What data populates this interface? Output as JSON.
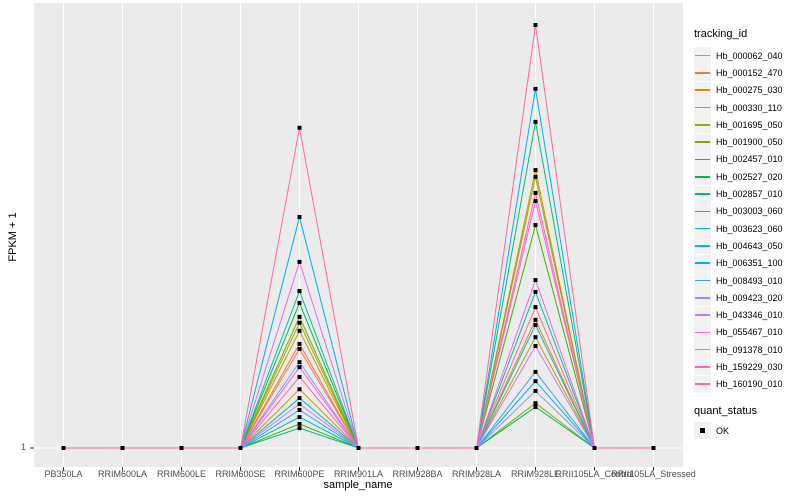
{
  "chart": {
    "y_axis_title": "FPKM + 1",
    "x_axis_title": "sample_name",
    "y_tick_label": "1"
  },
  "legend": {
    "tracking_title": "tracking_id",
    "quant_title": "quant_status",
    "quant_items": [
      {
        "label": "OK",
        "marker": "black-square"
      }
    ]
  },
  "colors": {
    "panel_background": "#EBEBEB",
    "gridline": "#FFFFFF",
    "tick_text": "#4D4D4D",
    "axis_text": "#000000",
    "legend_key_background": "#F2F2F2",
    "point": "#000000"
  },
  "chart_data": {
    "type": "line",
    "title": "",
    "xlabel": "sample_name",
    "ylabel": "FPKM + 1",
    "y_axis_ticks_visible": [
      "1"
    ],
    "value_encoding_note": "Only the y tick '1' is labeled on the axis; series values are estimated relative peak heights where 0 = baseline (FPKM+1 = 1) and 1.0 = tallest peak (Hb_160190_010 at RRIM928LE).",
    "grid": {
      "vertical_major": true,
      "horizontal_major_at_baseline": true
    },
    "legend_position": "right",
    "point_marker": "black-square",
    "categories": [
      "PB350LA",
      "RRIM600LA",
      "RRIM600LE",
      "RRIM600SE",
      "RRIM600PE",
      "RRIM901LA",
      "RRIM928BA",
      "RRIM928LA",
      "RRIM928LE",
      "RRII105LA_Control",
      "RRII105LA_Stressed"
    ],
    "spike_categories": [
      "RRIM600PE",
      "RRIM928LE"
    ],
    "series": [
      {
        "name": "Hb_000062_040",
        "color": "#F8766D",
        "values": [
          0,
          0,
          0,
          0,
          0.234,
          0,
          0,
          0,
          0.333,
          0,
          0
        ]
      },
      {
        "name": "Hb_000152_470",
        "color": "#EA8331",
        "values": [
          0,
          0,
          0,
          0,
          0.246,
          0,
          0,
          0,
          0.303,
          0,
          0
        ]
      },
      {
        "name": "Hb_000275_030",
        "color": "#D89000",
        "values": [
          0,
          0,
          0,
          0,
          0.139,
          0,
          0,
          0,
          0.262,
          0,
          0
        ]
      },
      {
        "name": "Hb_000330_110",
        "color": "#C09B00",
        "values": [
          0,
          0,
          0,
          0,
          0.277,
          0,
          0,
          0,
          0.657,
          0,
          0
        ]
      },
      {
        "name": "Hb_001695_050",
        "color": "#A3A500",
        "values": [
          0,
          0,
          0,
          0,
          0.296,
          0,
          0,
          0,
          0.641,
          0,
          0
        ]
      },
      {
        "name": "Hb_001900_050",
        "color": "#7CAE00",
        "values": [
          0,
          0,
          0,
          0,
          0.31,
          0,
          0,
          0,
          0.106,
          0,
          0
        ]
      },
      {
        "name": "Hb_002457_010",
        "color": "#39B600",
        "values": [
          0,
          0,
          0,
          0,
          0.057,
          0,
          0,
          0,
          0.527,
          0,
          0
        ]
      },
      {
        "name": "Hb_002527_020",
        "color": "#00BB4E",
        "values": [
          0,
          0,
          0,
          0,
          0.343,
          0,
          0,
          0,
          0.097,
          0,
          0
        ]
      },
      {
        "name": "Hb_002857_010",
        "color": "#00BF7D",
        "values": [
          0,
          0,
          0,
          0,
          0.047,
          0,
          0,
          0,
          0.771,
          0,
          0
        ]
      },
      {
        "name": "Hb_003003_060",
        "color": "#00C1A3",
        "values": [
          0,
          0,
          0,
          0,
          0.371,
          0,
          0,
          0,
          0.369,
          0,
          0
        ]
      },
      {
        "name": "Hb_003623_060",
        "color": "#00BFC4",
        "values": [
          0,
          0,
          0,
          0,
          0.073,
          0,
          0,
          0,
          0.291,
          0,
          0
        ]
      },
      {
        "name": "Hb_004643_050",
        "color": "#00BAE0",
        "values": [
          0,
          0,
          0,
          0,
          0.118,
          0,
          0,
          0,
          0.158,
          0,
          0
        ]
      },
      {
        "name": "Hb_006351_100",
        "color": "#00B0F6",
        "values": [
          0,
          0,
          0,
          0,
          0.546,
          0,
          0,
          0,
          0.849,
          0,
          0
        ]
      },
      {
        "name": "Hb_008493_010",
        "color": "#35A2FF",
        "values": [
          0,
          0,
          0,
          0,
          0.09,
          0,
          0,
          0,
          0.18,
          0,
          0
        ]
      },
      {
        "name": "Hb_009423_020",
        "color": "#9590FF",
        "values": [
          0,
          0,
          0,
          0,
          0.203,
          0,
          0,
          0,
          0.135,
          0,
          0
        ]
      },
      {
        "name": "Hb_043346_010",
        "color": "#C77CFF",
        "values": [
          0,
          0,
          0,
          0,
          0.104,
          0,
          0,
          0,
          0.241,
          0,
          0
        ]
      },
      {
        "name": "Hb_055467_010",
        "color": "#FA62DB",
        "values": [
          0,
          0,
          0,
          0,
          0.191,
          0,
          0,
          0,
          0.584,
          0,
          0
        ]
      },
      {
        "name": "Hb_091378_010",
        "color": "#E76BF3",
        "values": [
          0,
          0,
          0,
          0,
          0.44,
          0,
          0,
          0,
          0.397,
          0,
          0
        ]
      },
      {
        "name": "Hb_159229_030",
        "color": "#FF62BC",
        "values": [
          0,
          0,
          0,
          0,
          0.168,
          0,
          0,
          0,
          0.603,
          0,
          0
        ]
      },
      {
        "name": "Hb_160190_010",
        "color": "#FF6A98",
        "values": [
          0,
          0,
          0,
          0,
          0.757,
          0,
          0,
          0,
          1.0,
          0,
          0
        ]
      }
    ]
  }
}
